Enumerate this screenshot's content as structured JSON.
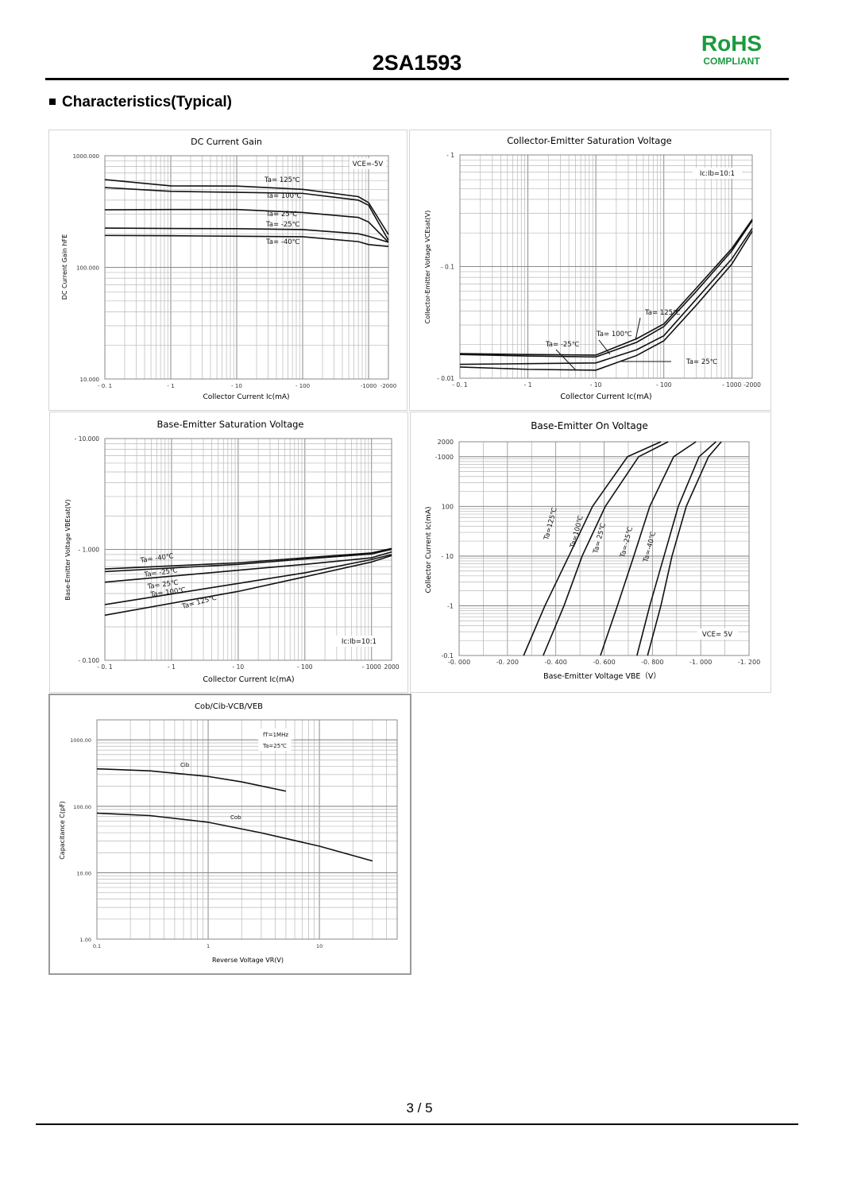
{
  "header": {
    "part_number": "2SA1593",
    "rohs": "RoHS",
    "rohs_sub": "COMPLIANT",
    "section_title": "Characteristics(Typical)"
  },
  "footer": {
    "page": "3 / 5"
  },
  "colors": {
    "rohs": "#1b9a3e",
    "grid": "#b8b8b8",
    "grid_major": "#8a8a8a",
    "curve": "#111111"
  },
  "chart_data": [
    {
      "type": "line",
      "title": "DC Current Gain",
      "xlabel": "Collector Current  Ic(mA)",
      "ylabel": "DC Current Gain  hFE",
      "xscale": "log",
      "yscale": "log",
      "xlim": [
        0.1,
        2000
      ],
      "ylim": [
        10,
        1000
      ],
      "grid": true,
      "xticks": [
        {
          "value": 0.1,
          "label": "- 0. 1"
        },
        {
          "value": 1,
          "label": "- 1"
        },
        {
          "value": 10,
          "label": "- 10"
        },
        {
          "value": 100,
          "label": "- 100"
        },
        {
          "value": 1000,
          "label": "-1000"
        },
        {
          "value": 2000,
          "label": "-2000"
        }
      ],
      "yticks": [
        {
          "value": 1000,
          "label": "1000.000"
        },
        {
          "value": 100,
          "label": "100.000"
        },
        {
          "value": 10,
          "label": "10.000"
        }
      ],
      "annotations": [
        "VCE=-5V"
      ],
      "series": [
        {
          "name": "Ta= 125℃",
          "x": [
            0.1,
            1,
            10,
            100,
            700,
            1000,
            2000
          ],
          "y": [
            611,
            537,
            535,
            500,
            430,
            380,
            197
          ]
        },
        {
          "name": "Ta= 100℃",
          "x": [
            0.1,
            1,
            10,
            100,
            700,
            1000,
            2000
          ],
          "y": [
            519,
            480,
            470,
            460,
            400,
            360,
            175
          ]
        },
        {
          "name": "Ta= 25℃",
          "x": [
            0.1,
            1,
            10,
            100,
            700,
            1000,
            2000
          ],
          "y": [
            328,
            330,
            330,
            310,
            280,
            255,
            168
          ]
        },
        {
          "name": "Ta= -25℃",
          "x": [
            0.1,
            1,
            10,
            100,
            700,
            1000,
            2000
          ],
          "y": [
            225,
            223,
            222,
            218,
            200,
            190,
            168
          ]
        },
        {
          "name": "Ta= -40℃",
          "x": [
            0.1,
            1,
            10,
            100,
            700,
            1000,
            2000
          ],
          "y": [
            193,
            192,
            190,
            188,
            170,
            160,
            154
          ]
        }
      ]
    },
    {
      "type": "line",
      "title": "Collector-Emitter Saturation Voltage",
      "xlabel": "Collector Current  Ic(mA)",
      "ylabel": "Collector-Emitter Voltage  VCEsat(V)",
      "xscale": "log",
      "yscale": "log",
      "xlim": [
        0.1,
        2000
      ],
      "ylim": [
        0.01,
        1
      ],
      "grid": true,
      "xticks": [
        {
          "value": 0.1,
          "label": "- 0. 1"
        },
        {
          "value": 1,
          "label": "- 1"
        },
        {
          "value": 10,
          "label": "- 10"
        },
        {
          "value": 100,
          "label": "- 100"
        },
        {
          "value": 1000,
          "label": "- 1000"
        },
        {
          "value": 2000,
          "label": "-2000"
        }
      ],
      "yticks": [
        {
          "value": 1,
          "label": "- 1"
        },
        {
          "value": 0.1,
          "label": "- 0.1"
        },
        {
          "value": 0.01,
          "label": "- 0.01"
        }
      ],
      "annotations": [
        "Ic:Ib=10:1"
      ],
      "series": [
        {
          "name": "Ta= 125℃",
          "x": [
            0.1,
            1,
            10,
            40,
            100,
            300,
            1000,
            2000
          ],
          "y": [
            0.0166,
            0.0163,
            0.0161,
            0.0226,
            0.0306,
            0.064,
            0.145,
            0.265
          ]
        },
        {
          "name": "Ta= 100℃",
          "x": [
            0.1,
            1,
            10,
            40,
            100,
            300,
            1000,
            2000
          ],
          "y": [
            0.0163,
            0.0158,
            0.0155,
            0.021,
            0.029,
            0.06,
            0.138,
            0.258
          ]
        },
        {
          "name": "Ta= -25℃",
          "x": [
            0.1,
            1,
            10,
            40,
            100,
            300,
            1000,
            2000
          ],
          "y": [
            0.0126,
            0.012,
            0.0118,
            0.016,
            0.0216,
            0.045,
            0.105,
            0.207
          ]
        },
        {
          "name": "Ta= 25℃",
          "x": [
            0.1,
            1,
            10,
            40,
            100,
            300,
            1000,
            2000
          ],
          "y": [
            0.0133,
            0.0135,
            0.0137,
            0.018,
            0.024,
            0.051,
            0.117,
            0.22
          ]
        }
      ]
    },
    {
      "type": "line",
      "title": "Base-Emitter Saturation Voltage",
      "xlabel": "Collector Current  Ic(mA)",
      "ylabel": "Base-Emitter Voltage  VBEsat(V)",
      "xscale": "log",
      "yscale": "log",
      "xlim": [
        0.1,
        2000
      ],
      "ylim": [
        0.1,
        10
      ],
      "grid": true,
      "xticks": [
        {
          "value": 0.1,
          "label": "- 0. 1"
        },
        {
          "value": 1,
          "label": "- 1"
        },
        {
          "value": 10,
          "label": "- 10"
        },
        {
          "value": 100,
          "label": "- 100"
        },
        {
          "value": 1000,
          "label": "- 1000"
        },
        {
          "value": 2000,
          "label": "2000"
        }
      ],
      "yticks": [
        {
          "value": 10,
          "label": "- 10.000"
        },
        {
          "value": 1,
          "label": "- 1.000"
        },
        {
          "value": 0.1,
          "label": "- 0.100"
        }
      ],
      "annotations": [
        "Ic:Ib=10:1"
      ],
      "series": [
        {
          "name": "Ta= -40℃",
          "x": [
            0.1,
            10,
            100,
            1000,
            2000
          ],
          "y": [
            0.667,
            0.757,
            0.841,
            0.929,
            1.02
          ]
        },
        {
          "name": "Ta= -25℃",
          "x": [
            0.1,
            10,
            100,
            1000,
            2000
          ],
          "y": [
            0.631,
            0.733,
            0.82,
            0.91,
            1.0
          ]
        },
        {
          "name": "Ta= 25℃",
          "x": [
            0.1,
            10,
            100,
            1000,
            2000
          ],
          "y": [
            0.507,
            0.649,
            0.733,
            0.84,
            0.95
          ]
        },
        {
          "name": "Ta= 100℃",
          "x": [
            0.1,
            10,
            100,
            1000,
            2000
          ],
          "y": [
            0.318,
            0.493,
            0.615,
            0.81,
            0.9
          ]
        },
        {
          "name": "Ta= 125℃",
          "x": [
            0.1,
            10,
            100,
            1000,
            2000
          ],
          "y": [
            0.255,
            0.418,
            0.566,
            0.77,
            0.88
          ]
        }
      ]
    },
    {
      "type": "line",
      "title": "Base-Emitter On Voltage",
      "xlabel": "Base-Emitter Voltage  VBE（V）",
      "ylabel": "Collector Current  Ic(mA)",
      "xscale": "linear",
      "yscale": "log",
      "xlim": [
        0,
        -1.2
      ],
      "ylim": [
        0.1,
        2000
      ],
      "grid": true,
      "xticks": [
        {
          "value": 0,
          "label": "-0. 000"
        },
        {
          "value": -0.2,
          "label": "-0. 200"
        },
        {
          "value": -0.4,
          "label": "-0. 400"
        },
        {
          "value": -0.6,
          "label": "-0. 600"
        },
        {
          "value": -0.8,
          "label": "-0. 800"
        },
        {
          "value": -1.0,
          "label": "-1. 000"
        },
        {
          "value": -1.2,
          "label": "-1. 200"
        }
      ],
      "yticks": [
        {
          "value": 2000,
          "label": "2000"
        },
        {
          "value": 1000,
          "label": "-1000"
        },
        {
          "value": 100,
          "label": "100"
        },
        {
          "value": 10,
          "label": "- 10"
        },
        {
          "value": 1,
          "label": "-1"
        },
        {
          "value": 0.1,
          "label": "-0.1"
        }
      ],
      "annotations": [
        "VCE=  5V"
      ],
      "series": [
        {
          "name": "Ta=125℃",
          "x": [
            -0.267,
            -0.355,
            -0.454,
            -0.552,
            -0.697,
            -0.835
          ],
          "y": [
            0.1,
            1,
            10,
            100,
            1000,
            2000
          ]
        },
        {
          "name": "Ta=100℃",
          "x": [
            -0.348,
            -0.434,
            -0.509,
            -0.605,
            -0.743,
            -0.865
          ],
          "y": [
            0.1,
            1,
            10,
            100,
            1000,
            2000
          ]
        },
        {
          "name": "Ta= 25℃",
          "x": [
            -0.585,
            -0.655,
            -0.723,
            -0.789,
            -0.888,
            -0.98
          ],
          "y": [
            0.1,
            1,
            10,
            100,
            1000,
            2000
          ]
        },
        {
          "name": "Ta=-25℃",
          "x": [
            -0.736,
            -0.789,
            -0.848,
            -0.907,
            -0.993,
            -1.063
          ],
          "y": [
            0.1,
            1,
            10,
            100,
            1000,
            2000
          ]
        },
        {
          "name": "Ta=-40℃",
          "x": [
            -0.78,
            -0.835,
            -0.881,
            -0.94,
            -1.032,
            -1.085
          ],
          "y": [
            0.1,
            1,
            10,
            100,
            1000,
            2000
          ]
        }
      ]
    },
    {
      "type": "line",
      "title": "Cob/Cib-VCB/VEB",
      "xlabel": "Reverse Voltage  VR(V)",
      "ylabel": "Capacitance  C(pF)",
      "xscale": "log",
      "yscale": "log",
      "xlim": [
        0.1,
        50
      ],
      "ylim": [
        1,
        2000
      ],
      "grid": true,
      "xticks": [
        {
          "value": 0.1,
          "label": "0.1"
        },
        {
          "value": 1,
          "label": "1"
        },
        {
          "value": 10,
          "label": "10"
        }
      ],
      "yticks": [
        {
          "value": 1000,
          "label": "1000.00"
        },
        {
          "value": 100,
          "label": "100.00"
        },
        {
          "value": 10,
          "label": "10.00"
        },
        {
          "value": 1,
          "label": "1.00"
        }
      ],
      "annotations": [
        "fT=1MHz",
        "Ta=25℃"
      ],
      "series": [
        {
          "name": "Cib",
          "x": [
            0.1,
            0.3,
            1,
            2,
            5
          ],
          "y": [
            366,
            341,
            281,
            233,
            169
          ]
        },
        {
          "name": "Cob",
          "x": [
            0.1,
            0.3,
            1,
            3,
            10,
            30
          ],
          "y": [
            78.7,
            72.4,
            57.5,
            39.8,
            25.1,
            15.0
          ]
        }
      ]
    }
  ]
}
